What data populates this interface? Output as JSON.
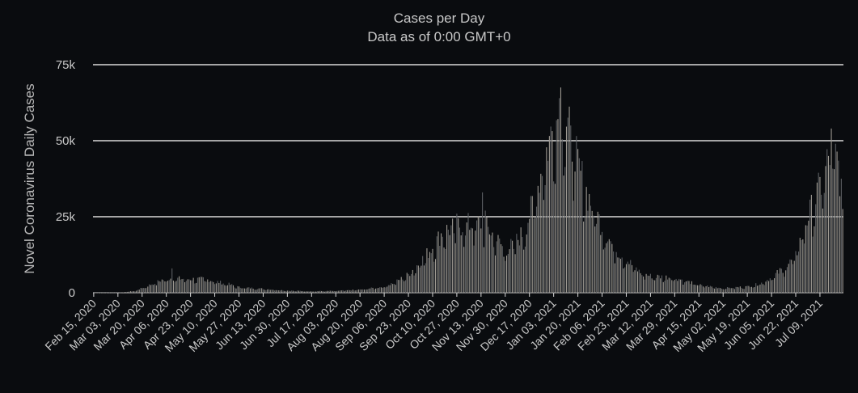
{
  "chart_data": {
    "type": "bar",
    "title": "Cases per Day",
    "subtitle": "Data as of 0:00 GMT+0",
    "xlabel": "",
    "ylabel": "Novel Coronavirus Daily Cases",
    "ylim": [
      0,
      75000
    ],
    "yticks": [
      {
        "value": 0,
        "label": "0"
      },
      {
        "value": 25000,
        "label": "25k"
      },
      {
        "value": 50000,
        "label": "50k"
      },
      {
        "value": 75000,
        "label": "75k"
      }
    ],
    "xticks": [
      "Feb 15, 2020",
      "Mar 03, 2020",
      "Mar 20, 2020",
      "Apr 06, 2020",
      "Apr 23, 2020",
      "May 10, 2020",
      "May 27, 2020",
      "Jun 13, 2020",
      "Jun 30, 2020",
      "Jul 17, 2020",
      "Aug 03, 2020",
      "Aug 20, 2020",
      "Sep 06, 2020",
      "Sep 23, 2020",
      "Oct 10, 2020",
      "Oct 27, 2020",
      "Nov 13, 2020",
      "Nov 30, 2020",
      "Dec 17, 2020",
      "Jan 03, 2021",
      "Jan 20, 2021",
      "Feb 06, 2021",
      "Feb 23, 2021",
      "Mar 12, 2021",
      "Mar 29, 2021",
      "Apr 15, 2021",
      "May 02, 2021",
      "May 19, 2021",
      "Jun 05, 2021",
      "Jun 22, 2021",
      "Jul 09, 2021"
    ],
    "grid": true,
    "bar_colors": [
      "#9e9a92",
      "#5c5f63"
    ],
    "series": [
      {
        "anchors": [
          [
            "2020-02-15",
            0
          ],
          [
            "2020-03-05",
            100
          ],
          [
            "2020-03-15",
            600
          ],
          [
            "2020-03-25",
            2500
          ],
          [
            "2020-04-03",
            4200
          ],
          [
            "2020-04-10",
            4800
          ],
          [
            "2020-04-20",
            4500
          ],
          [
            "2020-05-03",
            4500
          ],
          [
            "2020-05-10",
            3800
          ],
          [
            "2020-05-20",
            2800
          ],
          [
            "2020-05-27",
            1800
          ],
          [
            "2020-06-13",
            1300
          ],
          [
            "2020-06-30",
            700
          ],
          [
            "2020-07-17",
            500
          ],
          [
            "2020-08-03",
            600
          ],
          [
            "2020-08-20",
            1000
          ],
          [
            "2020-09-06",
            2000
          ],
          [
            "2020-09-15",
            3800
          ],
          [
            "2020-09-23",
            6000
          ],
          [
            "2020-10-01",
            10000
          ],
          [
            "2020-10-10",
            15000
          ],
          [
            "2020-10-17",
            20000
          ],
          [
            "2020-10-27",
            22000
          ],
          [
            "2020-11-05",
            22500
          ],
          [
            "2020-11-13",
            23000
          ],
          [
            "2020-11-20",
            20000
          ],
          [
            "2020-11-30",
            14000
          ],
          [
            "2020-12-06",
            16000
          ],
          [
            "2020-12-13",
            20000
          ],
          [
            "2020-12-20",
            30000
          ],
          [
            "2020-12-28",
            45000
          ],
          [
            "2021-01-03",
            55000
          ],
          [
            "2021-01-08",
            60000
          ],
          [
            "2021-01-12",
            56000
          ],
          [
            "2021-01-20",
            42000
          ],
          [
            "2021-01-27",
            32000
          ],
          [
            "2021-02-06",
            22000
          ],
          [
            "2021-02-14",
            15000
          ],
          [
            "2021-02-23",
            11000
          ],
          [
            "2021-03-05",
            6500
          ],
          [
            "2021-03-12",
            5500
          ],
          [
            "2021-03-29",
            5000
          ],
          [
            "2021-04-15",
            2500
          ],
          [
            "2021-05-02",
            1500
          ],
          [
            "2021-05-19",
            2000
          ],
          [
            "2021-05-28",
            3000
          ],
          [
            "2021-06-05",
            5000
          ],
          [
            "2021-06-15",
            8500
          ],
          [
            "2021-06-22",
            12000
          ],
          [
            "2021-06-28",
            22000
          ],
          [
            "2021-07-05",
            30000
          ],
          [
            "2021-07-10",
            36000
          ],
          [
            "2021-07-15",
            44000
          ],
          [
            "2021-07-18",
            48000
          ],
          [
            "2021-07-22",
            42000
          ],
          [
            "2021-07-25",
            30000
          ]
        ],
        "spikes": [
          [
            "2020-04-10",
            8000
          ],
          [
            "2020-10-27",
            26000
          ],
          [
            "2020-11-14",
            33000
          ],
          [
            "2020-11-16",
            27000
          ],
          [
            "2021-01-07",
            64000
          ],
          [
            "2021-01-08",
            67500
          ],
          [
            "2021-01-15",
            55000
          ],
          [
            "2021-07-17",
            54000
          ]
        ]
      }
    ]
  }
}
